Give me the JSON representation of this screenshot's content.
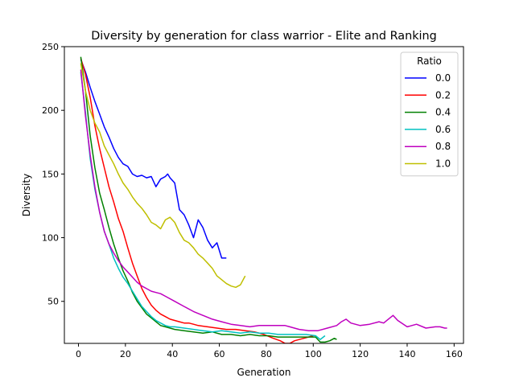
{
  "chart_data": {
    "type": "line",
    "title": "Diversity by generation for class warrior - Elite and Ranking",
    "xlabel": "Generation",
    "ylabel": "Diversity",
    "xlim": [
      -6,
      164
    ],
    "ylim": [
      17,
      250
    ],
    "xticks": [
      0,
      20,
      40,
      60,
      80,
      100,
      120,
      140,
      160
    ],
    "yticks": [
      50,
      100,
      150,
      200,
      250
    ],
    "grid": false,
    "legend": {
      "title": "Ratio",
      "placement": "upper-right"
    },
    "series": [
      {
        "name": "0.0",
        "color": "#0000ff",
        "x": [
          1,
          3,
          5,
          7,
          9,
          11,
          13,
          15,
          17,
          19,
          21,
          23,
          25,
          27,
          29,
          31,
          33,
          35,
          37,
          38,
          39,
          41,
          43,
          45,
          47,
          49,
          51,
          53,
          55,
          57,
          59,
          61,
          63
        ],
        "y": [
          240,
          230,
          218,
          207,
          197,
          187,
          179,
          170,
          163,
          158,
          156,
          150,
          148,
          149,
          147,
          148,
          140,
          146,
          148,
          150,
          147,
          143,
          122,
          118,
          110,
          100,
          114,
          108,
          98,
          92,
          96,
          84,
          84
        ]
      },
      {
        "name": "0.2",
        "color": "#ff0000",
        "x": [
          1,
          3,
          5,
          7,
          9,
          11,
          13,
          15,
          17,
          19,
          21,
          23,
          25,
          27,
          29,
          31,
          33,
          35,
          37,
          39,
          41,
          43,
          45,
          47,
          49,
          51,
          55,
          59,
          63,
          67,
          71,
          75,
          79,
          83,
          86,
          88,
          90,
          92,
          94,
          96,
          98,
          100
        ],
        "y": [
          241,
          228,
          210,
          188,
          170,
          155,
          140,
          128,
          115,
          105,
          92,
          80,
          70,
          60,
          53,
          47,
          43,
          40,
          38,
          36,
          35,
          34,
          33,
          33,
          32,
          31,
          30,
          29,
          28,
          28,
          27,
          26,
          24,
          21,
          19,
          17,
          17,
          19,
          20,
          21,
          22,
          23
        ]
      },
      {
        "name": "0.4",
        "color": "#008000",
        "x": [
          1,
          3,
          5,
          7,
          9,
          11,
          13,
          15,
          17,
          19,
          21,
          23,
          25,
          27,
          29,
          31,
          33,
          35,
          37,
          39,
          41,
          45,
          49,
          53,
          57,
          61,
          65,
          69,
          73,
          77,
          81,
          85,
          89,
          93,
          97,
          101,
          103,
          105,
          107,
          109,
          110
        ],
        "y": [
          242,
          215,
          180,
          155,
          135,
          122,
          108,
          95,
          84,
          74,
          66,
          57,
          50,
          45,
          40,
          37,
          34,
          31,
          30,
          29,
          28,
          27,
          26,
          25,
          26,
          24,
          24,
          23,
          24,
          23,
          23,
          22,
          22,
          22,
          22,
          22,
          18,
          18,
          19,
          21,
          20
        ]
      },
      {
        "name": "0.6",
        "color": "#00c0c0",
        "x": [
          1,
          3,
          5,
          7,
          9,
          11,
          13,
          15,
          17,
          19,
          21,
          23,
          25,
          27,
          29,
          31,
          33,
          35,
          37,
          39,
          41,
          45,
          49,
          53,
          57,
          61,
          65,
          69,
          73,
          77,
          81,
          85,
          89,
          93,
          97,
          101,
          103,
          105
        ],
        "y": [
          230,
          198,
          162,
          138,
          120,
          105,
          95,
          84,
          76,
          69,
          64,
          58,
          52,
          46,
          42,
          38,
          35,
          33,
          31,
          30,
          30,
          29,
          28,
          27,
          26,
          27,
          26,
          25,
          26,
          25,
          25,
          24,
          24,
          24,
          24,
          23,
          20,
          23
        ]
      },
      {
        "name": "0.8",
        "color": "#bf00bf",
        "x": [
          1,
          3,
          5,
          7,
          9,
          11,
          13,
          15,
          17,
          19,
          21,
          23,
          25,
          27,
          29,
          31,
          33,
          35,
          37,
          41,
          45,
          49,
          53,
          57,
          61,
          65,
          69,
          73,
          77,
          81,
          85,
          88,
          90,
          92,
          94,
          98,
          102,
          106,
          110,
          112,
          114,
          116,
          120,
          124,
          128,
          130,
          132,
          134,
          136,
          140,
          144,
          148,
          152,
          154,
          156,
          157
        ],
        "y": [
          232,
          195,
          165,
          140,
          120,
          105,
          95,
          88,
          82,
          77,
          73,
          69,
          65,
          62,
          60,
          58,
          57,
          56,
          54,
          50,
          46,
          42,
          39,
          36,
          34,
          32,
          31,
          30,
          31,
          31,
          31,
          31,
          30,
          29,
          28,
          27,
          27,
          29,
          31,
          34,
          36,
          33,
          31,
          32,
          34,
          33,
          36,
          39,
          35,
          30,
          32,
          29,
          30,
          30,
          29,
          29
        ]
      },
      {
        "name": "1.0",
        "color": "#bfbf00",
        "x": [
          1,
          3,
          5,
          7,
          9,
          11,
          13,
          15,
          17,
          19,
          21,
          23,
          25,
          27,
          29,
          31,
          33,
          35,
          37,
          39,
          41,
          43,
          45,
          47,
          49,
          51,
          53,
          55,
          57,
          59,
          61,
          63,
          65,
          67,
          69,
          71
        ],
        "y": [
          237,
          215,
          200,
          190,
          183,
          172,
          165,
          158,
          150,
          143,
          138,
          132,
          127,
          123,
          118,
          112,
          110,
          107,
          114,
          116,
          112,
          104,
          98,
          96,
          92,
          87,
          84,
          80,
          76,
          70,
          67,
          64,
          62,
          61,
          63,
          70
        ]
      }
    ]
  }
}
